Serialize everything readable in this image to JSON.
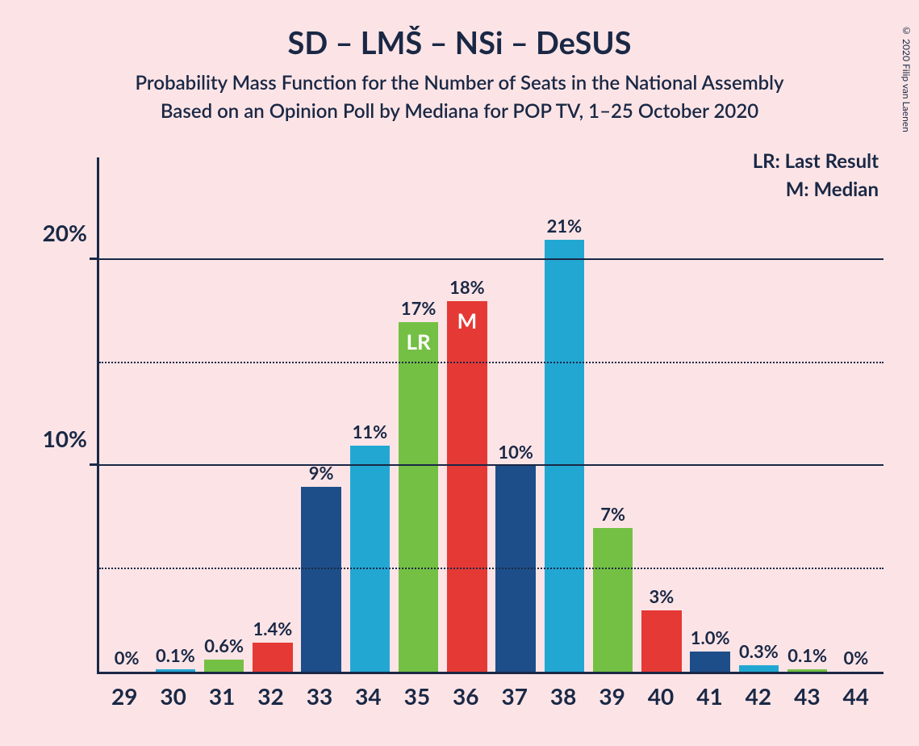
{
  "title": "SD – LMŠ – NSi – DeSUS",
  "subtitle": "Probability Mass Function for the Number of Seats in the National Assembly",
  "subtitle2": "Based on an Opinion Poll by Mediana for POP TV, 1–25 October 2020",
  "copyright": "© 2020 Filip van Laenen",
  "legend": {
    "lr": "LR: Last Result",
    "m": "M: Median"
  },
  "chart": {
    "type": "bar",
    "background_color": "#fce4e6",
    "axis_color": "#1a2845",
    "text_color": "#1a2845",
    "ymax": 25,
    "y_major_ticks": [
      10,
      20
    ],
    "y_minor_ticks": [
      5,
      15
    ],
    "y_tick_labels": [
      "10%",
      "20%"
    ],
    "bar_colors": {
      "dark_blue": "#1d4e89",
      "light_blue": "#22a7d3",
      "green": "#74c044",
      "red": "#e53935"
    },
    "color_cycle": [
      "dark_blue",
      "light_blue",
      "green",
      "red"
    ],
    "categories": [
      "29",
      "30",
      "31",
      "32",
      "33",
      "34",
      "35",
      "36",
      "37",
      "38",
      "39",
      "40",
      "41",
      "42",
      "43",
      "44"
    ],
    "values": [
      0,
      0.1,
      0.6,
      1.4,
      9,
      11,
      17,
      18,
      10,
      21,
      7,
      3,
      1.0,
      0.3,
      0.1,
      0
    ],
    "value_labels": [
      "0%",
      "0.1%",
      "0.6%",
      "1.4%",
      "9%",
      "11%",
      "17%",
      "18%",
      "10%",
      "21%",
      "7%",
      "3%",
      "1.0%",
      "0.3%",
      "0.1%",
      "0%"
    ],
    "inner_labels": {
      "35": "LR",
      "36": "M"
    },
    "fontsize_title": 38,
    "fontsize_subtitle": 24,
    "fontsize_axis": 28,
    "fontsize_value": 22,
    "fontsize_legend": 24
  }
}
